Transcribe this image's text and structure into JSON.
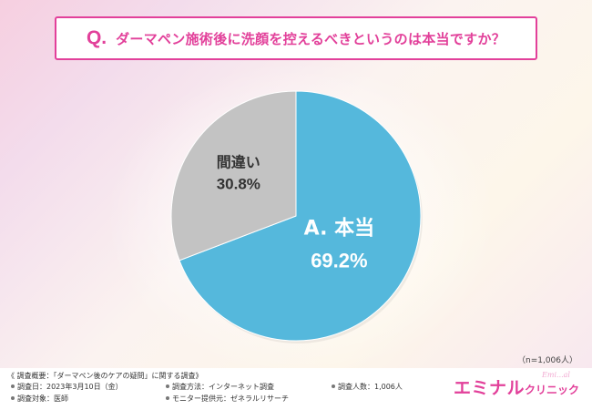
{
  "question": {
    "prefix": "Q.",
    "text": "ダーマペン施術後に洗顔を控えるべきというのは本当ですか？"
  },
  "chart_data": {
    "type": "pie",
    "title": "ダーマペン施術後に洗顔を控えるべきというのは本当ですか？",
    "slices": [
      {
        "label": "A. 本当",
        "value": 69.2,
        "display": "69.2%",
        "color": "#55b8dc",
        "label_color": "#ffffff"
      },
      {
        "label": "間違い",
        "value": 30.8,
        "display": "30.8%",
        "color": "#c3c3c3",
        "label_color": "#333333"
      }
    ],
    "start_angle_deg": 0,
    "direction": "clockwise"
  },
  "sample_size": "（n=1,006人）",
  "footer": {
    "survey_title": "《 調査概要：「ダーマペン後のケアの疑問」に関する調査》",
    "items": [
      "調査日：2023年3月10日（金）",
      "調査方法：インターネット調査",
      "調査人数：1,006人",
      "調査対象：医師",
      "モニター提供元：ゼネラルリサーチ"
    ]
  },
  "brand": {
    "main": "エミナル",
    "sub": "クリニック",
    "tag": "Emi...al"
  }
}
